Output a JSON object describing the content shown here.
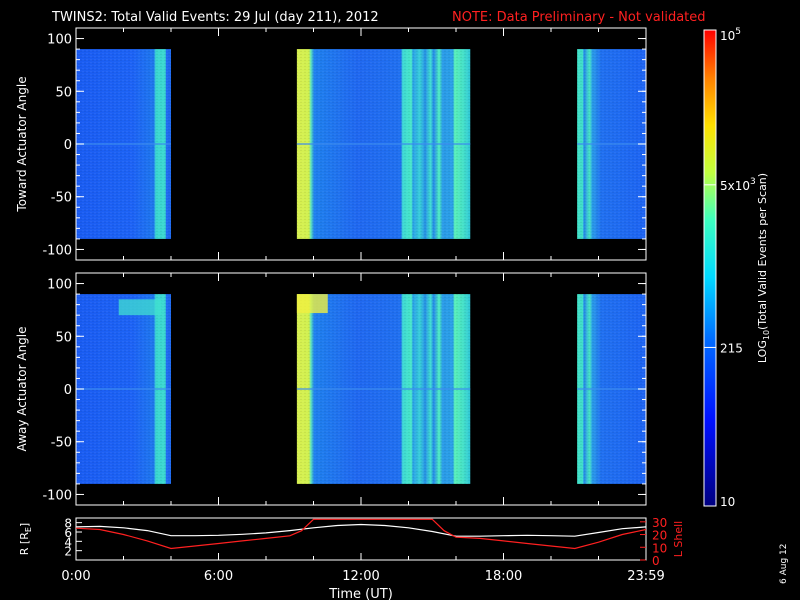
{
  "header": {
    "title": "TWINS2: Total Valid Events: 29 Jul (day 211), 2012",
    "note": "NOTE: Data Preliminary - Not validated",
    "note_color": "#ff2020"
  },
  "footer": {
    "date_stamp": "6 Aug 12"
  },
  "chart_data": [
    {
      "type": "heatmap",
      "title": "",
      "ylabel": "Toward Actuator Angle",
      "ylim": [
        -110,
        110
      ],
      "data_ylim": [
        -90,
        90
      ],
      "yticks": [
        -100,
        -50,
        0,
        50,
        100
      ],
      "x_units": "hours UT",
      "xlim": [
        0,
        24
      ],
      "data_intervals_hours": [
        [
          0.0,
          4.0
        ],
        [
          9.3,
          16.6
        ],
        [
          21.1,
          24.0
        ]
      ],
      "legend": "none",
      "grid": false
    },
    {
      "type": "heatmap",
      "title": "",
      "ylabel": "Away Actuator Angle",
      "ylim": [
        -110,
        110
      ],
      "data_ylim": [
        -90,
        90
      ],
      "yticks": [
        -100,
        -50,
        0,
        50,
        100
      ],
      "x_units": "hours UT",
      "xlim": [
        0,
        24
      ],
      "data_intervals_hours": [
        [
          0.0,
          4.0
        ],
        [
          9.3,
          16.6
        ],
        [
          21.1,
          24.0
        ]
      ],
      "legend": "none",
      "grid": false
    },
    {
      "type": "line",
      "ylabel_left": "R [R",
      "ylabel_left_sub": "E",
      "ylabel_left_close": "]",
      "ylabel_right": "L Shell",
      "xlabel": "Time (UT)",
      "xticks": [
        "0:00",
        "6:00",
        "12:00",
        "18:00",
        "23:59"
      ],
      "xlim": [
        0,
        24
      ],
      "yticks_left": [
        2,
        4,
        6,
        8
      ],
      "ylim_left": [
        0,
        9
      ],
      "yticks_right": [
        0,
        10,
        20,
        30
      ],
      "ylim_right": [
        0,
        33
      ],
      "right_axis_color": "#ff2020",
      "series": [
        {
          "name": "",
          "color": "#ffffff",
          "axis": "left",
          "x": [
            0,
            1,
            2,
            3,
            4,
            5,
            6,
            7,
            8,
            9,
            10,
            11,
            12,
            13,
            14,
            15,
            16,
            17,
            18,
            19,
            20,
            21,
            22,
            23,
            24
          ],
          "y": [
            7.1,
            7.2,
            6.9,
            6.3,
            5.2,
            5.2,
            5.3,
            5.5,
            5.8,
            6.3,
            6.9,
            7.4,
            7.6,
            7.4,
            6.9,
            6.1,
            5.1,
            5.1,
            5.2,
            5.3,
            5.2,
            5.1,
            5.9,
            6.7,
            7.1
          ]
        },
        {
          "name": "",
          "color": "#ff2020",
          "axis": "right",
          "x": [
            0,
            1,
            2,
            3,
            4,
            5,
            6,
            7,
            8,
            9,
            9.5,
            10.0,
            15.0,
            15.5,
            16,
            17,
            18,
            19,
            20,
            21,
            22,
            23,
            24
          ],
          "y": [
            25,
            24,
            20,
            15,
            9,
            11,
            13,
            15,
            17,
            19,
            23,
            32,
            32,
            23,
            18,
            17,
            15,
            13,
            11,
            9,
            14,
            20,
            24
          ]
        }
      ],
      "legend": "none",
      "grid": false
    }
  ],
  "colorbar": {
    "label": "LOG",
    "label_sub": "10",
    "label_rest": "(Total Valid Events per Scan)",
    "ticks": [
      {
        "value": 10,
        "text": "10"
      },
      {
        "value": 215,
        "text": "215"
      },
      {
        "value": 5000,
        "text": "5x10",
        "sup": "3"
      },
      {
        "value": 100000,
        "text": "10",
        "sup": "5"
      }
    ],
    "scale": "log",
    "range": [
      10,
      100000
    ]
  }
}
